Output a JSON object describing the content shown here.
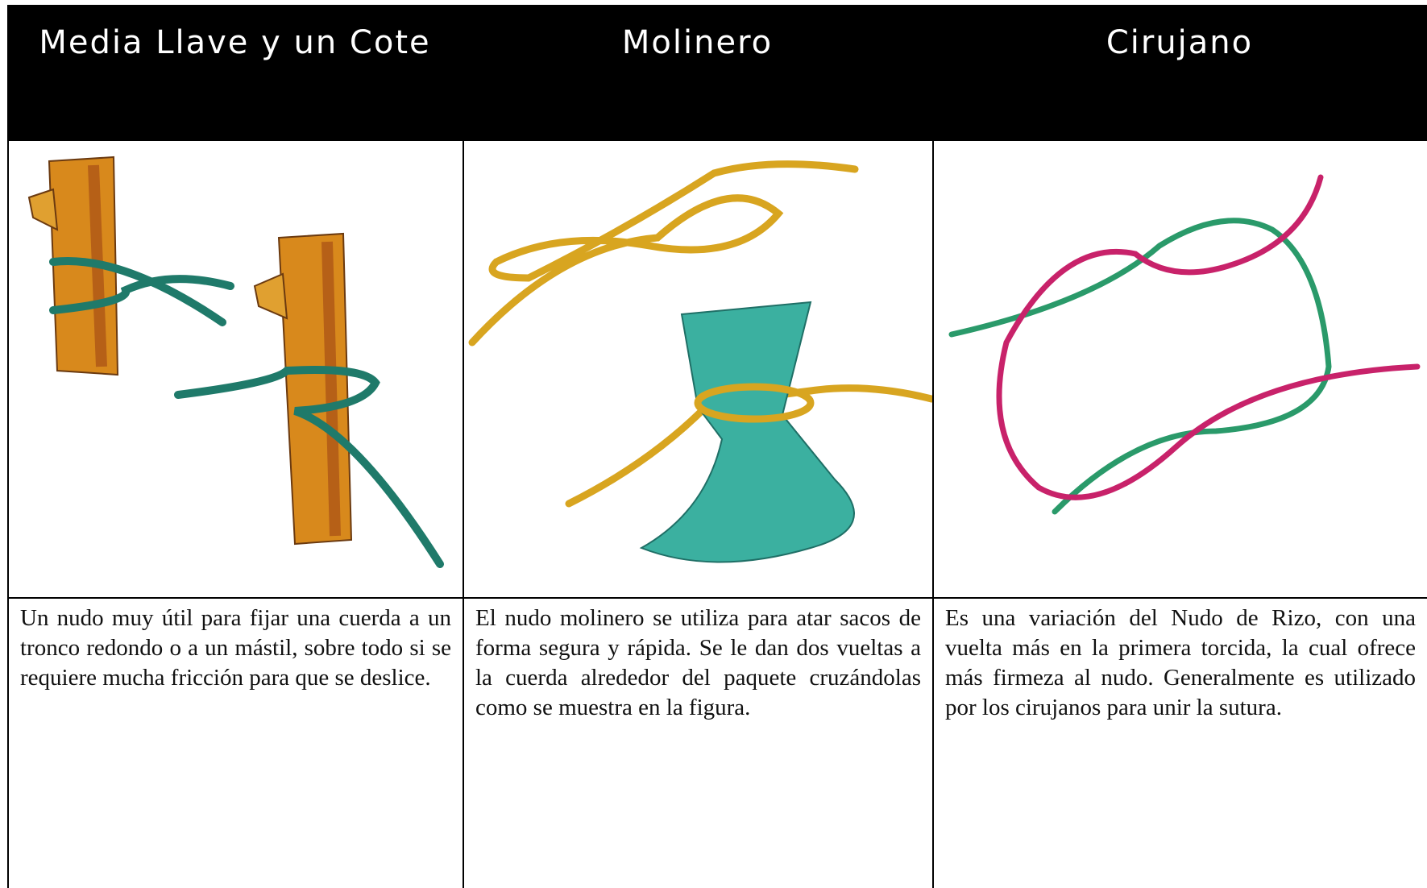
{
  "table": {
    "headers": [
      "Media Llave y un Cote",
      "Molinero",
      "Cirujano"
    ],
    "descriptions": [
      "Un nudo muy útil para fijar una cuerda a un tronco redondo o a un mástil, sobre todo si se requiere mucha fricción para que se deslice.",
      "El nudo molinero se utiliza para atar sacos de forma segura y rápida. Se le dan dos vueltas a la cuerda alrededor del paquete cruzándolas como se muestra en la figura.",
      "Es una variación del Nudo de Rizo, con una vuelta más en la primera torcida, la cual ofrece más firmeza al nudo. Generalmente es utilizado por los cirujanos para unir la sutura."
    ]
  }
}
